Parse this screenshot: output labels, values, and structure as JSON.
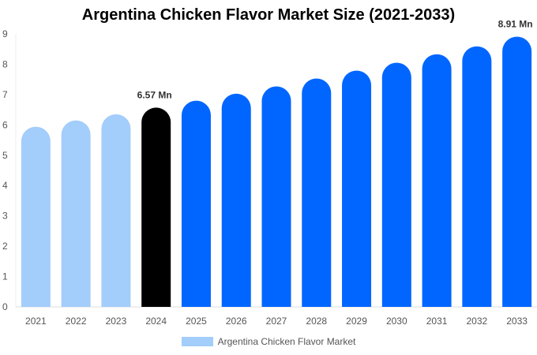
{
  "chart_data": {
    "type": "bar",
    "title": "Argentina Chicken Flavor Market Size (2021-2033)",
    "categories": [
      "2021",
      "2022",
      "2023",
      "2024",
      "2025",
      "2026",
      "2027",
      "2028",
      "2029",
      "2030",
      "2031",
      "2032",
      "2033"
    ],
    "series": [
      {
        "name": "Argentina Chicken Flavor Market",
        "values": [
          5.94,
          6.15,
          6.35,
          6.57,
          6.8,
          7.03,
          7.27,
          7.53,
          7.79,
          8.05,
          8.33,
          8.59,
          8.91
        ]
      }
    ],
    "data_labels": {
      "3": "6.57 Mn",
      "12": "8.91 Mn"
    },
    "ylim": [
      0,
      9
    ],
    "yticks": [
      0,
      1,
      2,
      3,
      4,
      5,
      6,
      7,
      8,
      9
    ],
    "xlabel": "",
    "ylabel": "",
    "grid": false,
    "legend": "bottom",
    "colors": {
      "historical": "#a3cdfb",
      "base_year": "#000000",
      "forecast": "#0066ff"
    }
  }
}
